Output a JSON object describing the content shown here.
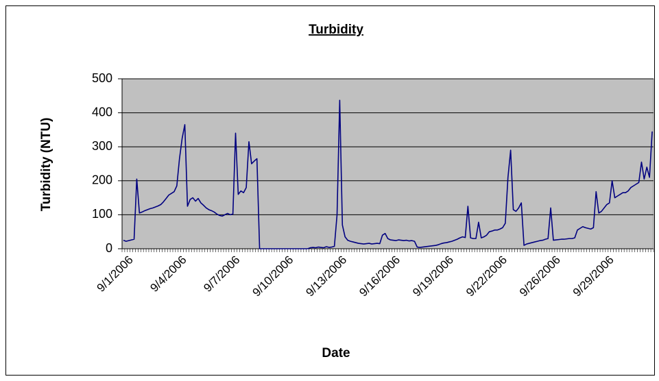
{
  "chart_data": {
    "type": "line",
    "title": "Turbidity",
    "x_label": "Date",
    "y_label": "Turbidity (NTU)",
    "color": "#000080",
    "grid": true,
    "ylim": [
      0,
      500
    ],
    "yticks": [
      0,
      100,
      200,
      300,
      400,
      500
    ],
    "categories": [
      null,
      null,
      "9/1/2006",
      null,
      null,
      null,
      null,
      null,
      null,
      null,
      null,
      null,
      null,
      null,
      null,
      null,
      null,
      null,
      null,
      null,
      null,
      null,
      "9/4/2006",
      null,
      null,
      null,
      null,
      null,
      null,
      null,
      null,
      null,
      null,
      null,
      null,
      null,
      null,
      null,
      null,
      null,
      null,
      null,
      "9/7/2006",
      null,
      null,
      null,
      null,
      null,
      null,
      null,
      null,
      null,
      null,
      null,
      null,
      null,
      null,
      null,
      null,
      null,
      null,
      null,
      "9/10/2006",
      null,
      null,
      null,
      null,
      null,
      null,
      null,
      null,
      null,
      null,
      null,
      null,
      null,
      null,
      null,
      null,
      null,
      null,
      null,
      "9/13/2006",
      null,
      null,
      null,
      null,
      null,
      null,
      null,
      null,
      null,
      null,
      null,
      null,
      null,
      null,
      null,
      null,
      null,
      null,
      null,
      "9/16/2006",
      null,
      null,
      null,
      null,
      null,
      null,
      null,
      null,
      null,
      null,
      null,
      null,
      null,
      null,
      null,
      null,
      null,
      null,
      null,
      "9/19/2006",
      null,
      null,
      null,
      null,
      null,
      null,
      null,
      null,
      null,
      null,
      null,
      null,
      null,
      null,
      null,
      null,
      null,
      null,
      null,
      "9/22/2006",
      null,
      null,
      null,
      null,
      null,
      null,
      null,
      null,
      null,
      null,
      null,
      null,
      null,
      null,
      null,
      null,
      null,
      null,
      null,
      "9/26/2006",
      null,
      null,
      null,
      null,
      null,
      null,
      null,
      null,
      null,
      null,
      null,
      null,
      null,
      null,
      null,
      null,
      null,
      null,
      null,
      "9/29/2006",
      null,
      null,
      null,
      null,
      null,
      null,
      null,
      null,
      null,
      null,
      null,
      null,
      null,
      null,
      null,
      null
    ],
    "values": [
      25,
      22,
      24,
      26,
      28,
      205,
      105,
      108,
      112,
      115,
      118,
      120,
      123,
      126,
      130,
      138,
      148,
      158,
      163,
      168,
      185,
      265,
      325,
      365,
      125,
      145,
      150,
      140,
      148,
      135,
      128,
      120,
      115,
      112,
      108,
      102,
      98,
      96,
      100,
      104,
      100,
      102,
      340,
      160,
      170,
      165,
      180,
      315,
      250,
      258,
      265,
      0,
      0,
      0,
      0,
      0,
      0,
      0,
      0,
      0,
      0,
      0,
      0,
      0,
      0,
      0,
      0,
      0,
      0,
      0,
      3,
      4,
      3,
      5,
      4,
      3,
      6,
      4,
      5,
      7,
      100,
      437,
      70,
      35,
      25,
      22,
      20,
      18,
      16,
      15,
      14,
      15,
      16,
      14,
      15,
      16,
      15,
      40,
      45,
      30,
      26,
      25,
      24,
      26,
      25,
      24,
      25,
      23,
      24,
      22,
      5,
      4,
      5,
      6,
      7,
      8,
      9,
      10,
      12,
      15,
      17,
      18,
      20,
      22,
      25,
      28,
      32,
      35,
      33,
      125,
      32,
      30,
      30,
      78,
      32,
      35,
      40,
      50,
      52,
      55,
      55,
      58,
      62,
      75,
      210,
      290,
      115,
      110,
      120,
      135,
      10,
      14,
      16,
      18,
      20,
      22,
      24,
      25,
      28,
      30,
      120,
      25,
      26,
      27,
      28,
      28,
      29,
      30,
      30,
      32,
      55,
      60,
      65,
      62,
      60,
      58,
      62,
      168,
      105,
      110,
      120,
      130,
      135,
      200,
      150,
      155,
      160,
      165,
      165,
      170,
      180,
      185,
      190,
      195,
      255,
      205,
      240,
      210,
      345
    ]
  }
}
